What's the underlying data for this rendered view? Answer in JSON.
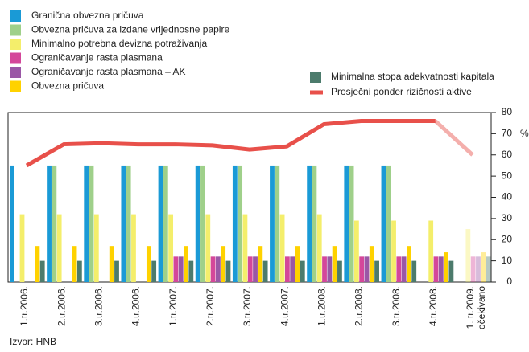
{
  "chart_data": {
    "type": "bar",
    "categories": [
      "1.tr.2006.",
      "2.tr.2006.",
      "3.tr.2006.",
      "4.tr.2006.",
      "1.tr.2007.",
      "2.tr.2007.",
      "3.tr.2007.",
      "4.tr.2007.",
      "1.tr.2008.",
      "2.tr.2008.",
      "3.tr.2008.",
      "4.tr.2008.",
      "1. tr.2009."
    ],
    "annotation": "očekivano",
    "series": [
      {
        "name": "Granična obvezna pričuva",
        "color": "#1a9ad6",
        "values": [
          55,
          55,
          55,
          55,
          55,
          55,
          55,
          55,
          55,
          55,
          55,
          null,
          null
        ]
      },
      {
        "name": "Obvezna pričuva za izdane vrijednosne papire",
        "color": "#9fd08a",
        "values": [
          null,
          55,
          55,
          55,
          55,
          55,
          55,
          55,
          55,
          55,
          55,
          null,
          null
        ]
      },
      {
        "name": "Minimalno potrebna devizna potraživanja",
        "color": "#f4ee6b",
        "values": [
          32,
          32,
          32,
          32,
          32,
          32,
          32,
          32,
          32,
          29,
          29,
          29,
          25
        ]
      },
      {
        "name": "Ograničavanje rasta plasmana",
        "color": "#d4479a",
        "values": [
          null,
          null,
          null,
          null,
          12,
          12,
          12,
          12,
          12,
          12,
          12,
          12,
          12
        ]
      },
      {
        "name": "Ograničavanje rasta plasmana – AK",
        "color": "#9a57a6",
        "values": [
          null,
          null,
          null,
          null,
          12,
          12,
          12,
          12,
          12,
          12,
          12,
          12,
          12
        ]
      },
      {
        "name": "Obvezna pričuva",
        "color": "#ffd200",
        "values": [
          17,
          17,
          17,
          17,
          17,
          17,
          17,
          17,
          17,
          17,
          17,
          14,
          14
        ]
      },
      {
        "name": "Minimalna stopa adekvatnosti kapitala",
        "color": "#4c7b6c",
        "values": [
          10,
          10,
          10,
          10,
          10,
          10,
          10,
          10,
          10,
          10,
          10,
          10,
          12
        ]
      },
      {
        "name": "Prosječni ponder rizičnosti aktive",
        "type": "line",
        "color": "#e8504a",
        "values": [
          55,
          65,
          65.5,
          65,
          65,
          64.5,
          62.5,
          64,
          74.5,
          76,
          76,
          76,
          60
        ]
      }
    ],
    "ylim": [
      0,
      80
    ],
    "yticks": [
      0,
      10,
      20,
      30,
      40,
      50,
      60,
      70,
      80
    ],
    "y_unit": "%",
    "source": "Izvor: HNB"
  }
}
